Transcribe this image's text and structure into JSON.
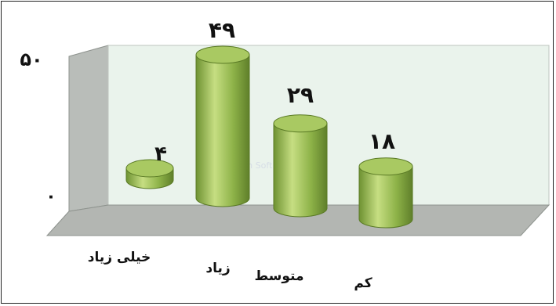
{
  "chart_data": {
    "type": "bar",
    "categories": [
      "خیلی زیاد",
      "زیاد",
      "متوسط",
      "کم"
    ],
    "values": [
      4,
      49,
      29,
      18
    ],
    "value_labels": [
      "۴",
      "۴۹",
      "۲۹",
      "۱۸"
    ],
    "y_ticks": [
      "۰",
      "۵۰"
    ],
    "ylim": [
      0,
      50
    ],
    "grid": false,
    "title": "",
    "xlabel": "",
    "ylabel": "",
    "watermark": "FaLogen Soft",
    "colors": {
      "bar_side": "#7ea33c",
      "bar_highlight": "#c6de82",
      "bar_top": "#a9c962",
      "back_wall": "#eaf3ec",
      "side_wall": "#b9bdb9",
      "floor": "#b3b6b2"
    }
  }
}
